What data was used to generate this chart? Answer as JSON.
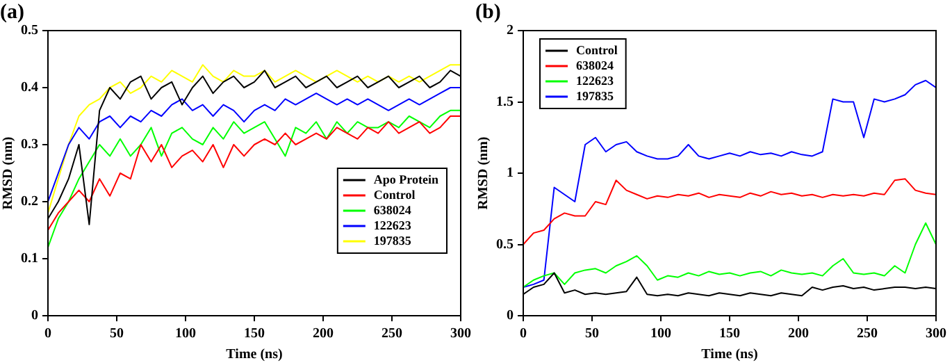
{
  "chart_data": [
    {
      "type": "line",
      "title": "(a)",
      "xlabel": "Time (ns)",
      "ylabel": "RMSD (nm)",
      "xlim": [
        0,
        300
      ],
      "xticks": [
        0,
        50,
        100,
        150,
        200,
        250,
        300
      ],
      "ylim": [
        0,
        0.5
      ],
      "yticks": [
        0,
        0.1,
        0.2,
        0.3,
        0.4,
        0.5
      ],
      "legend": "bottom right",
      "grid": false,
      "marker": "none",
      "line_style": "solid",
      "x": [
        0,
        7.5,
        15,
        22.5,
        30,
        37.5,
        45,
        52.5,
        60,
        67.5,
        75,
        82.5,
        90,
        97.5,
        105,
        112.5,
        120,
        127.5,
        135,
        142.5,
        150,
        157.5,
        165,
        172.5,
        180,
        187.5,
        195,
        202.5,
        210,
        217.5,
        225,
        232.5,
        240,
        247.5,
        255,
        262.5,
        270,
        277.5,
        285,
        292.5,
        300
      ],
      "series": [
        {
          "name": "Apo Protein",
          "color": "#000000",
          "values": [
            0.17,
            0.2,
            0.24,
            0.3,
            0.16,
            0.36,
            0.4,
            0.38,
            0.41,
            0.42,
            0.38,
            0.4,
            0.41,
            0.37,
            0.4,
            0.42,
            0.39,
            0.41,
            0.42,
            0.4,
            0.41,
            0.43,
            0.4,
            0.41,
            0.42,
            0.4,
            0.41,
            0.42,
            0.4,
            0.41,
            0.42,
            0.4,
            0.41,
            0.42,
            0.4,
            0.41,
            0.42,
            0.4,
            0.41,
            0.43,
            0.42
          ]
        },
        {
          "name": "Control",
          "color": "#ff0000",
          "values": [
            0.15,
            0.18,
            0.2,
            0.22,
            0.2,
            0.24,
            0.21,
            0.25,
            0.24,
            0.3,
            0.27,
            0.3,
            0.26,
            0.28,
            0.29,
            0.27,
            0.3,
            0.26,
            0.3,
            0.28,
            0.3,
            0.31,
            0.3,
            0.32,
            0.3,
            0.31,
            0.32,
            0.31,
            0.33,
            0.32,
            0.31,
            0.33,
            0.32,
            0.34,
            0.32,
            0.33,
            0.34,
            0.32,
            0.33,
            0.35,
            0.35
          ]
        },
        {
          "name": "638024",
          "color": "#00ff00",
          "values": [
            0.12,
            0.17,
            0.2,
            0.24,
            0.27,
            0.3,
            0.28,
            0.31,
            0.28,
            0.3,
            0.33,
            0.28,
            0.32,
            0.33,
            0.31,
            0.3,
            0.33,
            0.31,
            0.34,
            0.32,
            0.33,
            0.34,
            0.31,
            0.28,
            0.33,
            0.32,
            0.34,
            0.31,
            0.34,
            0.32,
            0.34,
            0.33,
            0.33,
            0.34,
            0.33,
            0.35,
            0.34,
            0.33,
            0.35,
            0.36,
            0.36
          ]
        },
        {
          "name": "122623",
          "color": "#0000ff",
          "values": [
            0.2,
            0.25,
            0.3,
            0.33,
            0.31,
            0.34,
            0.35,
            0.33,
            0.35,
            0.34,
            0.36,
            0.35,
            0.37,
            0.38,
            0.36,
            0.37,
            0.35,
            0.37,
            0.36,
            0.34,
            0.36,
            0.37,
            0.36,
            0.38,
            0.37,
            0.38,
            0.39,
            0.38,
            0.37,
            0.38,
            0.37,
            0.38,
            0.37,
            0.36,
            0.37,
            0.38,
            0.37,
            0.38,
            0.39,
            0.4,
            0.4
          ]
        },
        {
          "name": "197835",
          "color": "#ffff00",
          "values": [
            0.18,
            0.24,
            0.3,
            0.35,
            0.37,
            0.38,
            0.4,
            0.41,
            0.39,
            0.4,
            0.42,
            0.41,
            0.43,
            0.42,
            0.41,
            0.44,
            0.42,
            0.41,
            0.43,
            0.42,
            0.42,
            0.43,
            0.41,
            0.42,
            0.43,
            0.42,
            0.41,
            0.42,
            0.43,
            0.42,
            0.41,
            0.42,
            0.41,
            0.42,
            0.41,
            0.42,
            0.41,
            0.42,
            0.43,
            0.44,
            0.44
          ]
        }
      ]
    },
    {
      "type": "line",
      "title": "(b)",
      "xlabel": "Time (ns)",
      "ylabel": "RMSD (nm)",
      "xlim": [
        0,
        300
      ],
      "xticks": [
        0,
        50,
        100,
        150,
        200,
        250,
        300
      ],
      "ylim": [
        0,
        2
      ],
      "yticks": [
        0,
        0.5,
        1,
        1.5,
        2
      ],
      "legend": "top left",
      "grid": false,
      "marker": "none",
      "line_style": "solid",
      "x": [
        0,
        7.5,
        15,
        22.5,
        30,
        37.5,
        45,
        52.5,
        60,
        67.5,
        75,
        82.5,
        90,
        97.5,
        105,
        112.5,
        120,
        127.5,
        135,
        142.5,
        150,
        157.5,
        165,
        172.5,
        180,
        187.5,
        195,
        202.5,
        210,
        217.5,
        225,
        232.5,
        240,
        247.5,
        255,
        262.5,
        270,
        277.5,
        285,
        292.5,
        300
      ],
      "series": [
        {
          "name": "Control",
          "color": "#000000",
          "values": [
            0.15,
            0.2,
            0.22,
            0.3,
            0.16,
            0.18,
            0.15,
            0.16,
            0.15,
            0.16,
            0.17,
            0.27,
            0.15,
            0.14,
            0.15,
            0.14,
            0.16,
            0.15,
            0.14,
            0.16,
            0.15,
            0.14,
            0.16,
            0.15,
            0.14,
            0.16,
            0.15,
            0.14,
            0.2,
            0.18,
            0.2,
            0.21,
            0.19,
            0.2,
            0.18,
            0.19,
            0.2,
            0.2,
            0.19,
            0.2,
            0.19
          ]
        },
        {
          "name": "638024",
          "color": "#ff0000",
          "values": [
            0.5,
            0.58,
            0.6,
            0.68,
            0.72,
            0.7,
            0.7,
            0.8,
            0.78,
            0.95,
            0.88,
            0.85,
            0.82,
            0.84,
            0.83,
            0.85,
            0.84,
            0.86,
            0.83,
            0.85,
            0.84,
            0.83,
            0.86,
            0.84,
            0.87,
            0.85,
            0.86,
            0.84,
            0.85,
            0.83,
            0.85,
            0.84,
            0.85,
            0.84,
            0.86,
            0.85,
            0.95,
            0.96,
            0.88,
            0.86,
            0.85
          ]
        },
        {
          "name": "122623",
          "color": "#00ff00",
          "values": [
            0.2,
            0.25,
            0.28,
            0.3,
            0.22,
            0.3,
            0.32,
            0.33,
            0.3,
            0.35,
            0.38,
            0.42,
            0.35,
            0.25,
            0.28,
            0.27,
            0.3,
            0.28,
            0.31,
            0.29,
            0.3,
            0.28,
            0.3,
            0.31,
            0.28,
            0.32,
            0.3,
            0.29,
            0.3,
            0.28,
            0.35,
            0.4,
            0.3,
            0.29,
            0.3,
            0.28,
            0.35,
            0.3,
            0.5,
            0.65,
            0.5
          ]
        },
        {
          "name": "197835",
          "color": "#0000ff",
          "values": [
            0.2,
            0.22,
            0.25,
            0.9,
            0.85,
            0.8,
            1.2,
            1.25,
            1.15,
            1.2,
            1.22,
            1.15,
            1.12,
            1.1,
            1.1,
            1.12,
            1.2,
            1.12,
            1.1,
            1.12,
            1.14,
            1.12,
            1.15,
            1.13,
            1.14,
            1.12,
            1.15,
            1.13,
            1.12,
            1.15,
            1.52,
            1.5,
            1.5,
            1.25,
            1.52,
            1.5,
            1.52,
            1.55,
            1.62,
            1.65,
            1.6
          ]
        }
      ]
    }
  ]
}
